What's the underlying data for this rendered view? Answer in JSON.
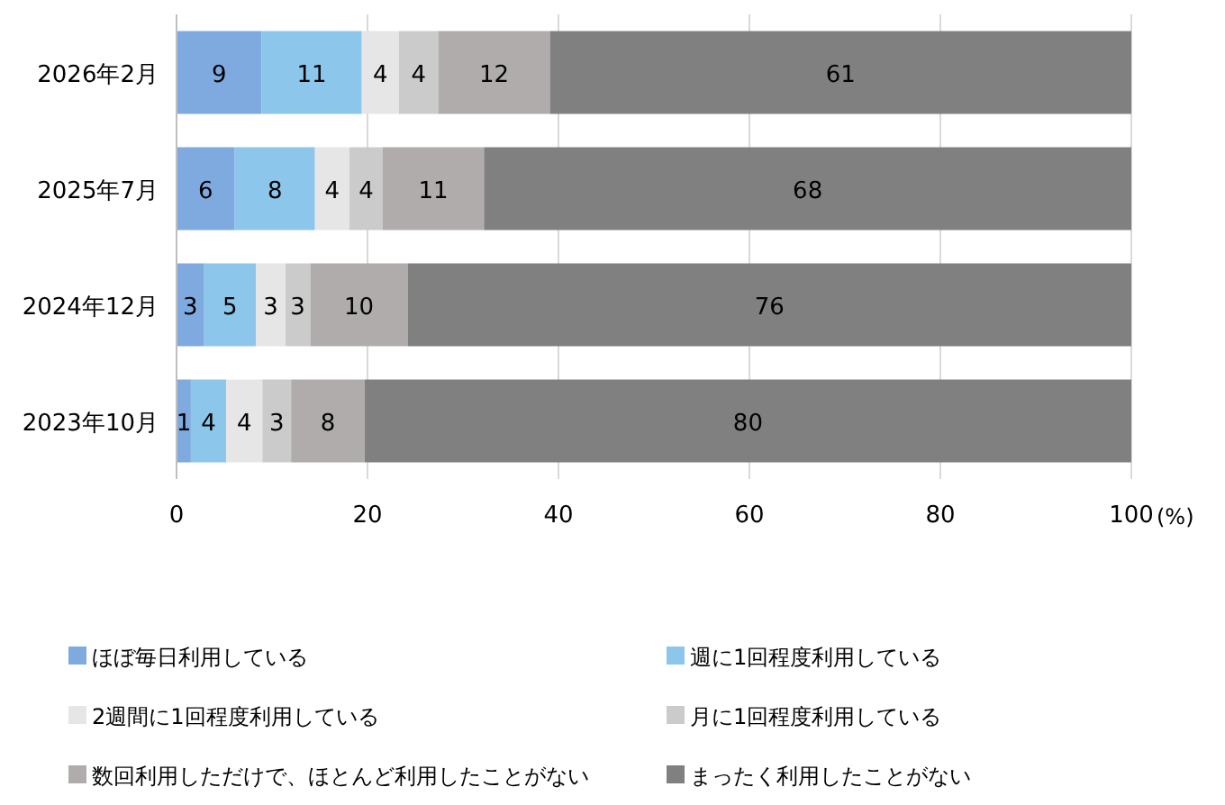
{
  "chart_data": {
    "type": "bar",
    "orientation": "horizontal",
    "stacked": true,
    "grid": "x",
    "legend": "bottom",
    "xlabel": "(%)",
    "categories": [
      "2026年2月",
      "2025年7月",
      "2024年12月",
      "2023年10月"
    ],
    "xlim": [
      0,
      100
    ],
    "xticks": [
      0,
      20,
      40,
      60,
      80,
      100
    ],
    "series": [
      {
        "name": "ほぼ毎日利用している",
        "color": "#7faae0",
        "values": [
          8.9,
          6.1,
          2.9,
          1.5
        ],
        "value_labels": [
          "9",
          "6",
          "3",
          "1"
        ]
      },
      {
        "name": "週に1回程度利用している",
        "color": "#8cc6ea",
        "values": [
          10.5,
          8.4,
          5.4,
          3.7
        ],
        "value_labels": [
          "11",
          "8",
          "5",
          "4"
        ]
      },
      {
        "name": "2週間に1回程度利用している",
        "color": "#e6e6e6",
        "values": [
          3.9,
          3.6,
          3.1,
          3.8
        ],
        "value_labels": [
          "4",
          "4",
          "3",
          "4"
        ]
      },
      {
        "name": "月に1回程度利用している",
        "color": "#cbcbcb",
        "values": [
          4.1,
          3.5,
          2.6,
          3.0
        ],
        "value_labels": [
          "4",
          "4",
          "3",
          "3"
        ]
      },
      {
        "name": "数回利用しただけで、ほとんど利用したことがない",
        "color": "#b0acac",
        "values": [
          11.7,
          10.6,
          10.2,
          7.7
        ],
        "value_labels": [
          "12",
          "11",
          "10",
          "8"
        ]
      },
      {
        "name": "まったく利用したことがない",
        "color": "#808080",
        "values": [
          60.9,
          67.8,
          75.8,
          80.3
        ],
        "value_labels": [
          "61",
          "68",
          "76",
          "80"
        ]
      }
    ]
  }
}
